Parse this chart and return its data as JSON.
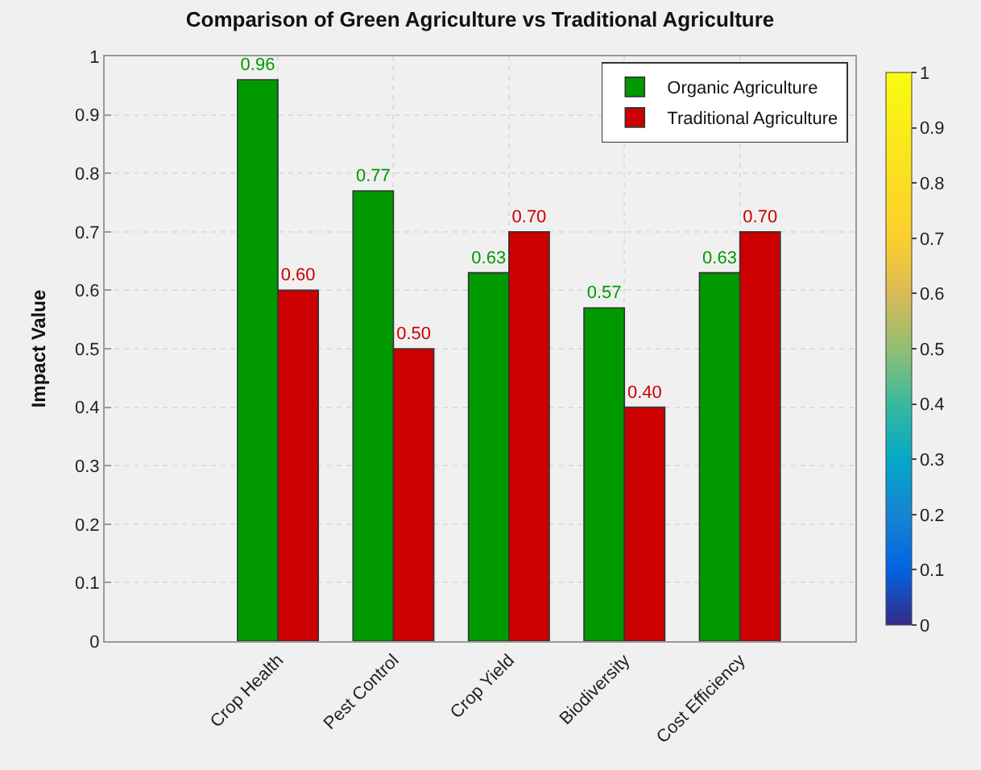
{
  "chart_data": {
    "type": "bar",
    "title": "Comparison of Green Agriculture vs Traditional Agriculture",
    "ylabel": "Impact Value",
    "categories": [
      "Crop Health",
      "Pest Control",
      "Crop Yield",
      "Biodiversity",
      "Cost Efficiency"
    ],
    "series": [
      {
        "name": "Organic Agriculture",
        "color": "#009900",
        "values": [
          0.96,
          0.77,
          0.63,
          0.57,
          0.63
        ],
        "value_labels": [
          "0.96",
          "0.77",
          "0.63",
          "0.57",
          "0.63"
        ]
      },
      {
        "name": "Traditional Agriculture",
        "color": "#cc0000",
        "values": [
          0.6,
          0.5,
          0.7,
          0.4,
          0.7
        ],
        "value_labels": [
          "0.60",
          "0.50",
          "0.70",
          "0.40",
          "0.70"
        ]
      }
    ],
    "ylim": [
      0,
      1
    ],
    "yticks": [
      0,
      0.1,
      0.2,
      0.3,
      0.4,
      0.5,
      0.6,
      0.7,
      0.8,
      0.9,
      1
    ],
    "clim": [
      0,
      1
    ],
    "cticks": [
      0,
      0.1,
      0.2,
      0.3,
      0.4,
      0.5,
      0.6,
      0.7,
      0.8,
      0.9,
      1
    ],
    "grid": true,
    "legend": "top right"
  }
}
